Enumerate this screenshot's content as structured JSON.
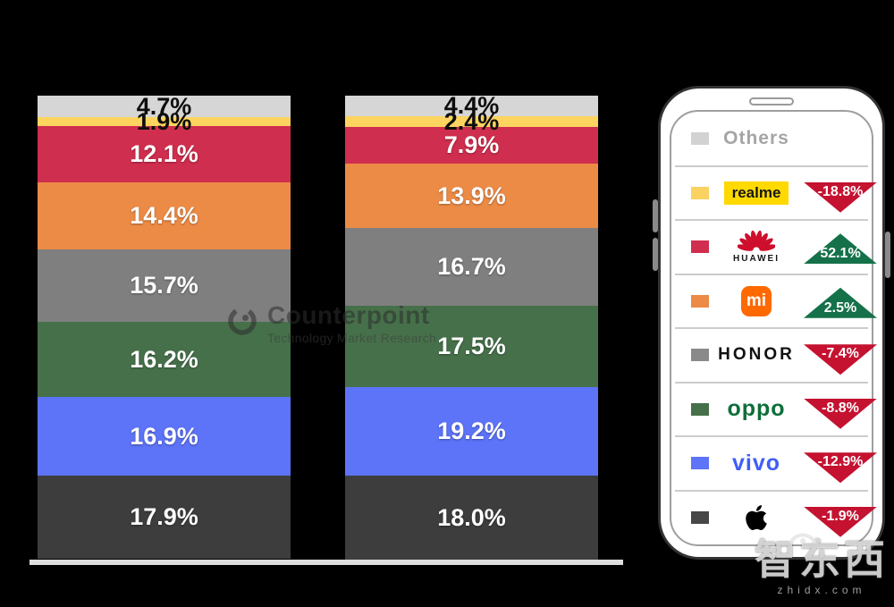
{
  "chart_data": {
    "type": "bar",
    "stacked_percent": true,
    "bars": 2,
    "value_suffix": "%",
    "series": [
      {
        "name": "Others",
        "color": "#d6d6d6",
        "label_color": "#0d0d0d",
        "values": [
          4.7,
          4.4
        ]
      },
      {
        "name": "realme",
        "color": "#fcd45f",
        "label_color": "#0d0d0d",
        "values": [
          1.9,
          2.4
        ]
      },
      {
        "name": "HUAWEI",
        "color": "#d02e4e",
        "label_color": "#ffffff",
        "values": [
          12.1,
          7.9
        ]
      },
      {
        "name": "Xiaomi",
        "color": "#ec8b46",
        "label_color": "#ffffff",
        "values": [
          14.4,
          13.9
        ]
      },
      {
        "name": "HONOR",
        "color": "#7f7f7f",
        "label_color": "#ffffff",
        "values": [
          15.7,
          16.7
        ]
      },
      {
        "name": "OPPO",
        "color": "#46704a",
        "label_color": "#ffffff",
        "values": [
          16.2,
          17.5
        ]
      },
      {
        "name": "vivo",
        "color": "#5d73f8",
        "label_color": "#ffffff",
        "values": [
          16.9,
          19.2
        ]
      },
      {
        "name": "Apple",
        "color": "#3d3d3d",
        "label_color": "#ffffff",
        "values": [
          17.9,
          18.0
        ]
      }
    ]
  },
  "legend": {
    "up_color": "#15714a",
    "down_color": "#c41230",
    "rows": [
      {
        "brand": "Others",
        "logo": "others",
        "swatch": "#d2d2d2",
        "label": "Others",
        "change": "",
        "direction": ""
      },
      {
        "brand": "realme",
        "logo": "realme",
        "swatch": "#f9d262",
        "label": "realme",
        "change": "-18.8%",
        "direction": "down"
      },
      {
        "brand": "HUAWEI",
        "logo": "huawei",
        "swatch": "#d02e4e",
        "label": "HUAWEI",
        "change": "52.1%",
        "direction": "up"
      },
      {
        "brand": "Xiaomi",
        "logo": "mi",
        "swatch": "#ec8b46",
        "label": "mi",
        "change": "2.5%",
        "direction": "up"
      },
      {
        "brand": "HONOR",
        "logo": "honor",
        "swatch": "#8a8a8a",
        "label": "HONOR",
        "change": "-7.4%",
        "direction": "down"
      },
      {
        "brand": "OPPO",
        "logo": "oppo",
        "swatch": "#46704a",
        "label": "oppo",
        "change": "-8.8%",
        "direction": "down"
      },
      {
        "brand": "vivo",
        "logo": "vivo",
        "swatch": "#5d73f8",
        "label": "vivo",
        "change": "-12.9%",
        "direction": "down"
      },
      {
        "brand": "Apple",
        "logo": "apple",
        "swatch": "#474747",
        "label": "",
        "change": "-1.9%",
        "direction": "down"
      }
    ]
  },
  "watermark": {
    "brand": "Counterpoint",
    "subtitle": "Technology Market Research"
  },
  "corner_logo": {
    "text": "智东西",
    "domain": "zhidx.com"
  }
}
